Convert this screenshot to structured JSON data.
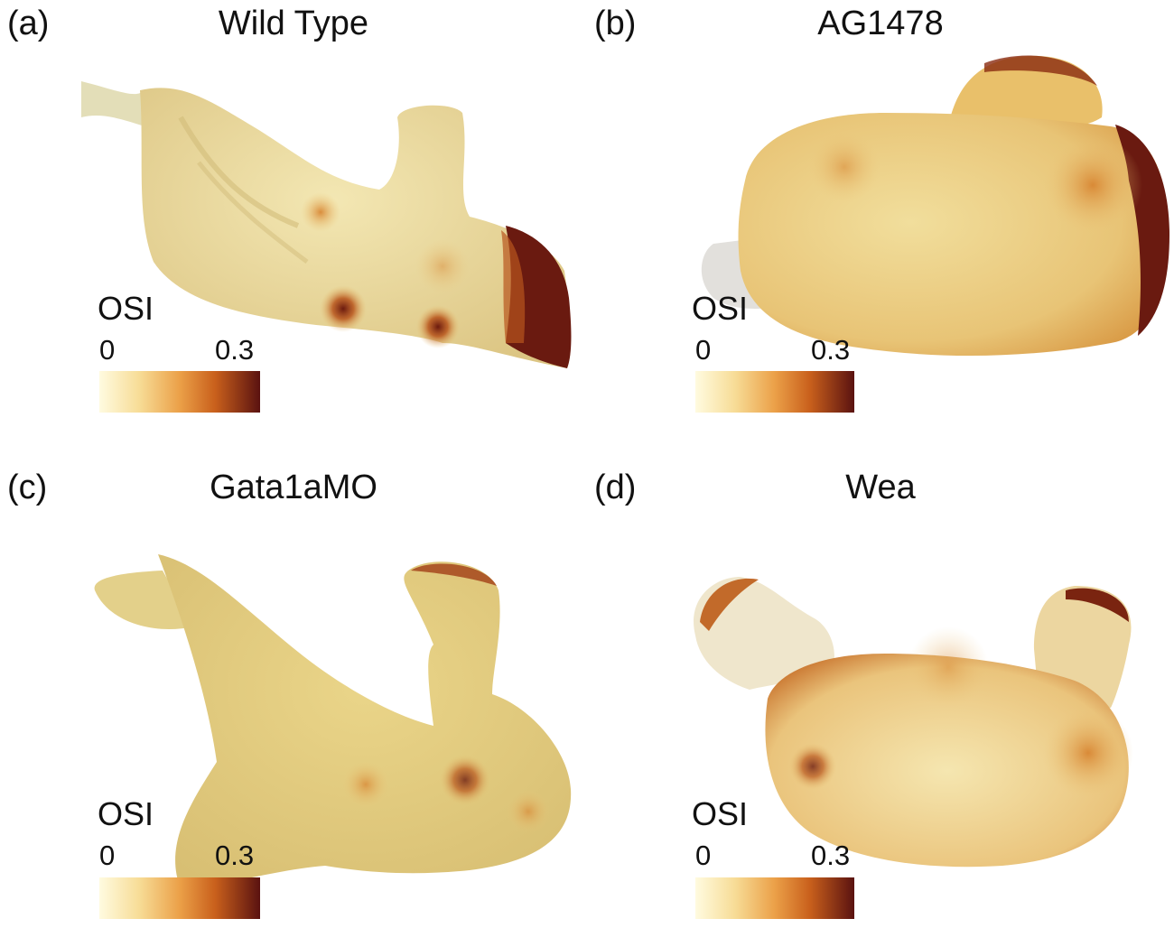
{
  "panels": [
    {
      "label": "(a)",
      "title": "Wild Type"
    },
    {
      "label": "(b)",
      "title": "AG1478"
    },
    {
      "label": "(c)",
      "title": "Gata1aMO"
    },
    {
      "label": "(d)",
      "title": "Wea"
    }
  ],
  "legend": {
    "title": "OSI",
    "min": "0",
    "max": "0.3"
  },
  "colors": {
    "low": "#fdf7d4",
    "mid": "#e9952e",
    "high": "#5a1210",
    "surface": "#e6d48e"
  }
}
